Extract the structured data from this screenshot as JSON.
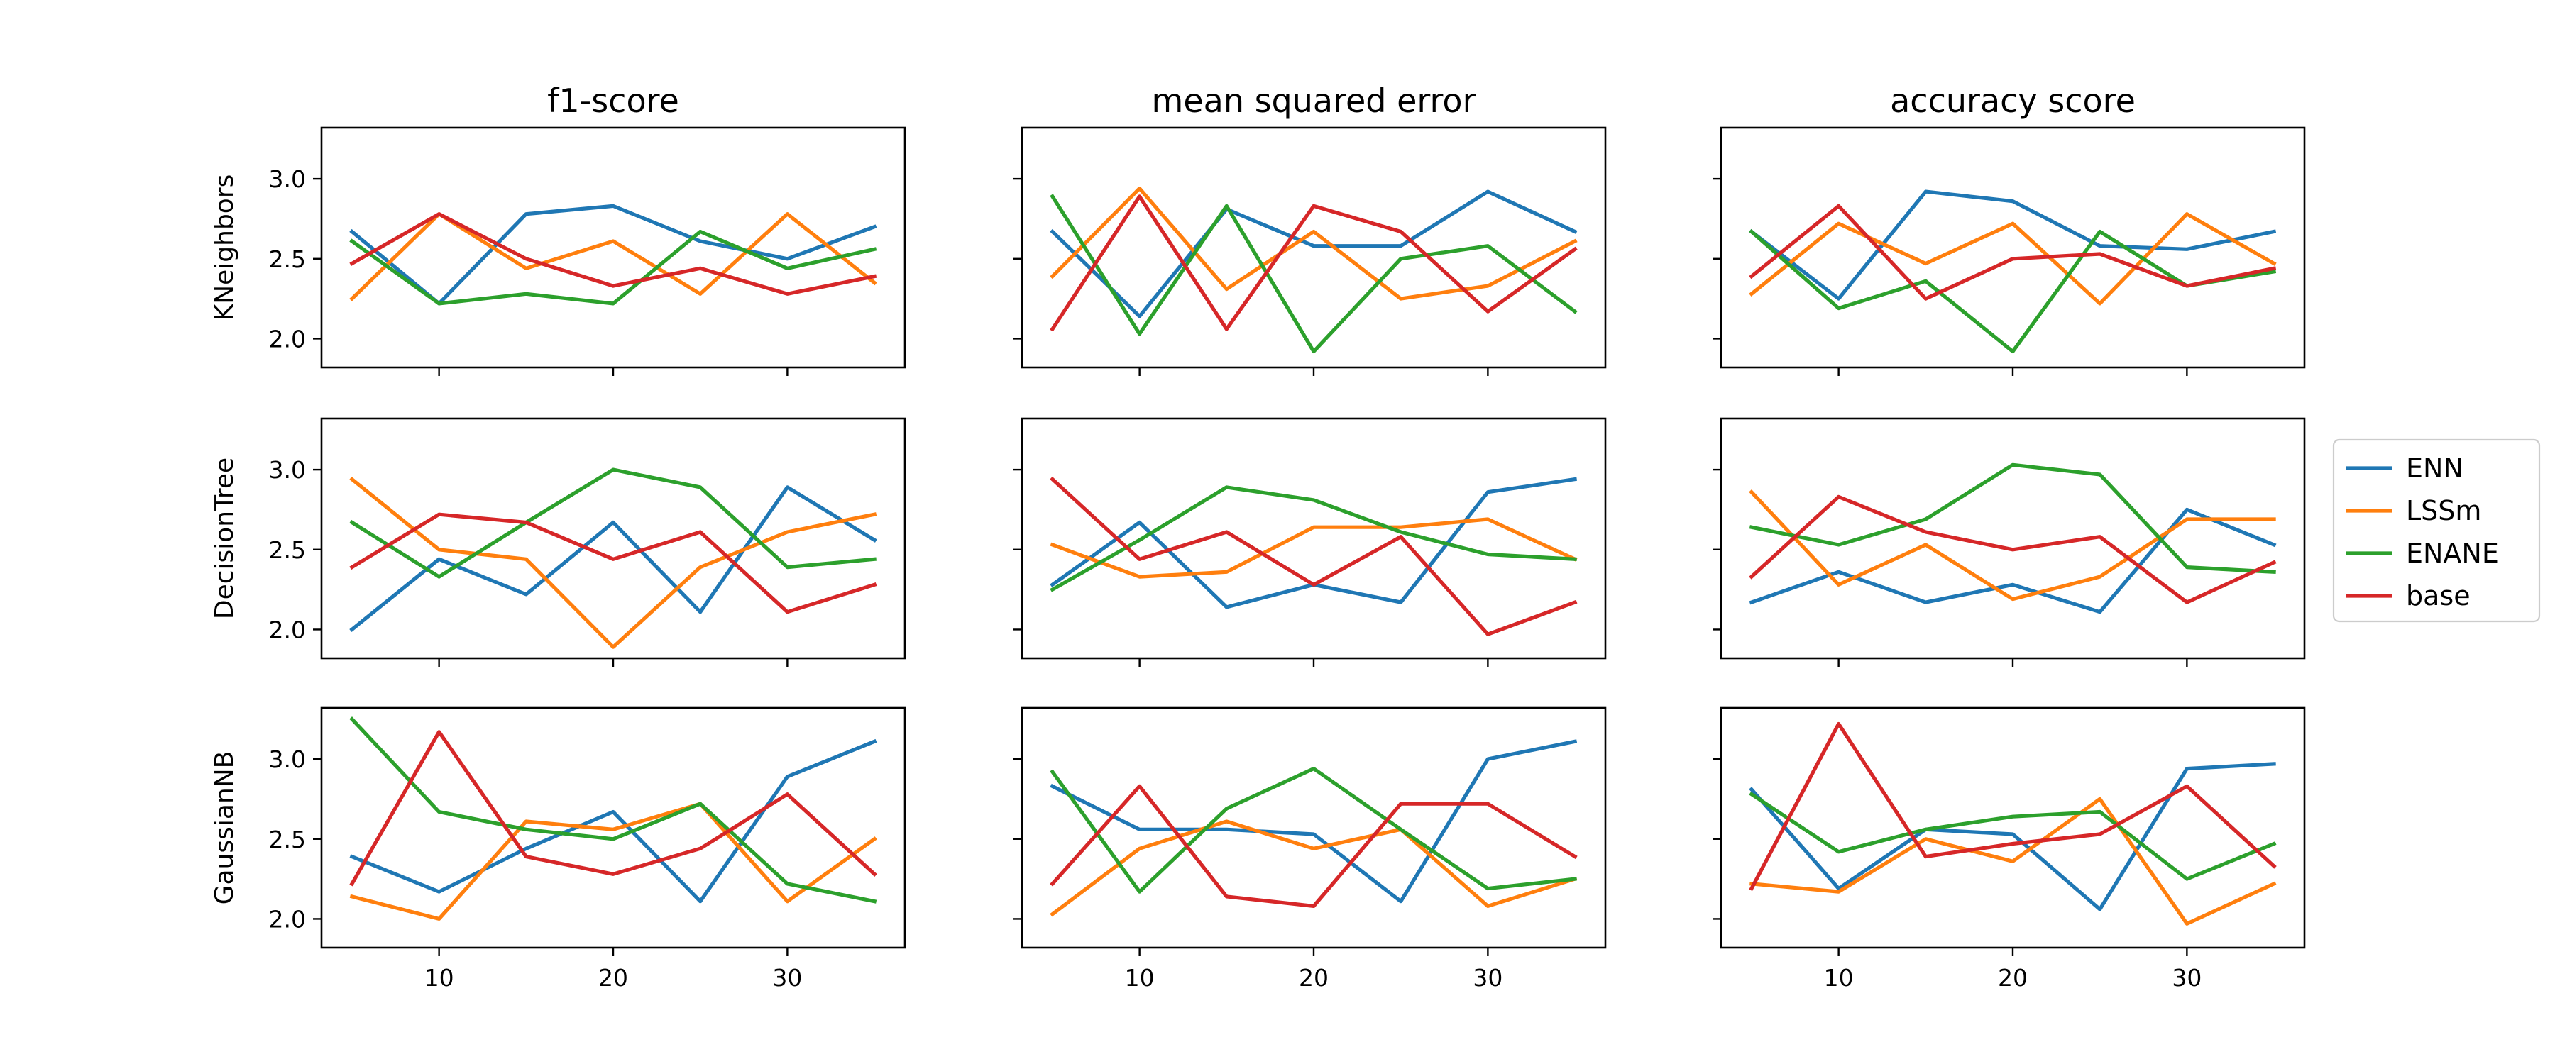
{
  "chart_data": {
    "type": "line",
    "x": [
      5,
      10,
      15,
      20,
      25,
      30,
      35
    ],
    "xticks": [
      10,
      20,
      30
    ],
    "yticks": [
      2.0,
      2.5,
      3.0
    ],
    "xlim": [
      3.25,
      36.75
    ],
    "ylim": [
      1.82,
      3.32
    ],
    "grid": false,
    "legend_position": "right",
    "colors": {
      "ENN": "#1f77b4",
      "LSSm": "#ff7f0e",
      "ENANE": "#2ca02c",
      "base": "#d62728"
    },
    "legend": [
      "ENN",
      "LSSm",
      "ENANE",
      "base"
    ],
    "columns": [
      "f1-score",
      "mean squared error",
      "accuracy score"
    ],
    "rows": [
      "KNeighbors",
      "DecisionTree",
      "GaussianNB"
    ],
    "panels": [
      {
        "row": "KNeighbors",
        "column": "f1-score",
        "series": [
          {
            "name": "ENN",
            "values": [
              2.67,
              2.22,
              2.78,
              2.83,
              2.61,
              2.5,
              2.7
            ]
          },
          {
            "name": "LSSm",
            "values": [
              2.25,
              2.78,
              2.44,
              2.61,
              2.28,
              2.78,
              2.35
            ]
          },
          {
            "name": "ENANE",
            "values": [
              2.61,
              2.22,
              2.28,
              2.22,
              2.67,
              2.44,
              2.56
            ]
          },
          {
            "name": "base",
            "values": [
              2.47,
              2.78,
              2.5,
              2.33,
              2.44,
              2.28,
              2.39
            ]
          }
        ]
      },
      {
        "row": "KNeighbors",
        "column": "mean squared error",
        "series": [
          {
            "name": "ENN",
            "values": [
              2.67,
              2.14,
              2.81,
              2.58,
              2.58,
              2.92,
              2.67
            ]
          },
          {
            "name": "LSSm",
            "values": [
              2.39,
              2.94,
              2.31,
              2.67,
              2.25,
              2.33,
              2.61
            ]
          },
          {
            "name": "ENANE",
            "values": [
              2.89,
              2.03,
              2.83,
              1.92,
              2.5,
              2.58,
              2.17
            ]
          },
          {
            "name": "base",
            "values": [
              2.06,
              2.89,
              2.06,
              2.83,
              2.67,
              2.17,
              2.56
            ]
          }
        ]
      },
      {
        "row": "KNeighbors",
        "column": "accuracy score",
        "series": [
          {
            "name": "ENN",
            "values": [
              2.67,
              2.25,
              2.92,
              2.86,
              2.58,
              2.56,
              2.67
            ]
          },
          {
            "name": "LSSm",
            "values": [
              2.28,
              2.72,
              2.47,
              2.72,
              2.22,
              2.78,
              2.47
            ]
          },
          {
            "name": "ENANE",
            "values": [
              2.67,
              2.19,
              2.36,
              1.92,
              2.67,
              2.33,
              2.42
            ]
          },
          {
            "name": "base",
            "values": [
              2.39,
              2.83,
              2.25,
              2.5,
              2.53,
              2.33,
              2.44
            ]
          }
        ]
      },
      {
        "row": "DecisionTree",
        "column": "f1-score",
        "series": [
          {
            "name": "ENN",
            "values": [
              2.0,
              2.44,
              2.22,
              2.67,
              2.11,
              2.89,
              2.56
            ]
          },
          {
            "name": "LSSm",
            "values": [
              2.94,
              2.5,
              2.44,
              1.89,
              2.39,
              2.61,
              2.72
            ]
          },
          {
            "name": "ENANE",
            "values": [
              2.67,
              2.33,
              2.67,
              3.0,
              2.89,
              2.39,
              2.44
            ]
          },
          {
            "name": "base",
            "values": [
              2.39,
              2.72,
              2.67,
              2.44,
              2.61,
              2.11,
              2.28
            ]
          }
        ]
      },
      {
        "row": "DecisionTree",
        "column": "mean squared error",
        "series": [
          {
            "name": "ENN",
            "values": [
              2.28,
              2.67,
              2.14,
              2.28,
              2.17,
              2.86,
              2.94
            ]
          },
          {
            "name": "LSSm",
            "values": [
              2.53,
              2.33,
              2.36,
              2.64,
              2.64,
              2.69,
              2.44
            ]
          },
          {
            "name": "ENANE",
            "values": [
              2.25,
              2.56,
              2.89,
              2.81,
              2.61,
              2.47,
              2.44
            ]
          },
          {
            "name": "base",
            "values": [
              2.94,
              2.44,
              2.61,
              2.28,
              2.58,
              1.97,
              2.17
            ]
          }
        ]
      },
      {
        "row": "DecisionTree",
        "column": "accuracy score",
        "series": [
          {
            "name": "ENN",
            "values": [
              2.17,
              2.36,
              2.17,
              2.28,
              2.11,
              2.75,
              2.53
            ]
          },
          {
            "name": "LSSm",
            "values": [
              2.86,
              2.28,
              2.53,
              2.19,
              2.33,
              2.69,
              2.69
            ]
          },
          {
            "name": "ENANE",
            "values": [
              2.64,
              2.53,
              2.69,
              3.03,
              2.97,
              2.39,
              2.36
            ]
          },
          {
            "name": "base",
            "values": [
              2.33,
              2.83,
              2.61,
              2.5,
              2.58,
              2.17,
              2.42
            ]
          }
        ]
      },
      {
        "row": "GaussianNB",
        "column": "f1-score",
        "series": [
          {
            "name": "ENN",
            "values": [
              2.39,
              2.17,
              2.44,
              2.67,
              2.11,
              2.89,
              3.11
            ]
          },
          {
            "name": "LSSm",
            "values": [
              2.14,
              2.0,
              2.61,
              2.56,
              2.72,
              2.11,
              2.5
            ]
          },
          {
            "name": "ENANE",
            "values": [
              3.25,
              2.67,
              2.56,
              2.5,
              2.72,
              2.22,
              2.11
            ]
          },
          {
            "name": "base",
            "values": [
              2.22,
              3.17,
              2.39,
              2.28,
              2.44,
              2.78,
              2.28
            ]
          }
        ]
      },
      {
        "row": "GaussianNB",
        "column": "mean squared error",
        "series": [
          {
            "name": "ENN",
            "values": [
              2.83,
              2.56,
              2.56,
              2.53,
              2.11,
              3.0,
              3.11
            ]
          },
          {
            "name": "LSSm",
            "values": [
              2.03,
              2.44,
              2.61,
              2.44,
              2.56,
              2.08,
              2.25
            ]
          },
          {
            "name": "ENANE",
            "values": [
              2.92,
              2.17,
              2.69,
              2.94,
              2.56,
              2.19,
              2.25
            ]
          },
          {
            "name": "base",
            "values": [
              2.22,
              2.83,
              2.14,
              2.08,
              2.72,
              2.72,
              2.39
            ]
          }
        ]
      },
      {
        "row": "GaussianNB",
        "column": "accuracy score",
        "series": [
          {
            "name": "ENN",
            "values": [
              2.81,
              2.19,
              2.56,
              2.53,
              2.06,
              2.94,
              2.97
            ]
          },
          {
            "name": "LSSm",
            "values": [
              2.22,
              2.17,
              2.5,
              2.36,
              2.75,
              1.97,
              2.22
            ]
          },
          {
            "name": "ENANE",
            "values": [
              2.78,
              2.42,
              2.56,
              2.64,
              2.67,
              2.25,
              2.47
            ]
          },
          {
            "name": "base",
            "values": [
              2.19,
              3.22,
              2.39,
              2.47,
              2.53,
              2.83,
              2.33
            ]
          }
        ]
      }
    ]
  }
}
